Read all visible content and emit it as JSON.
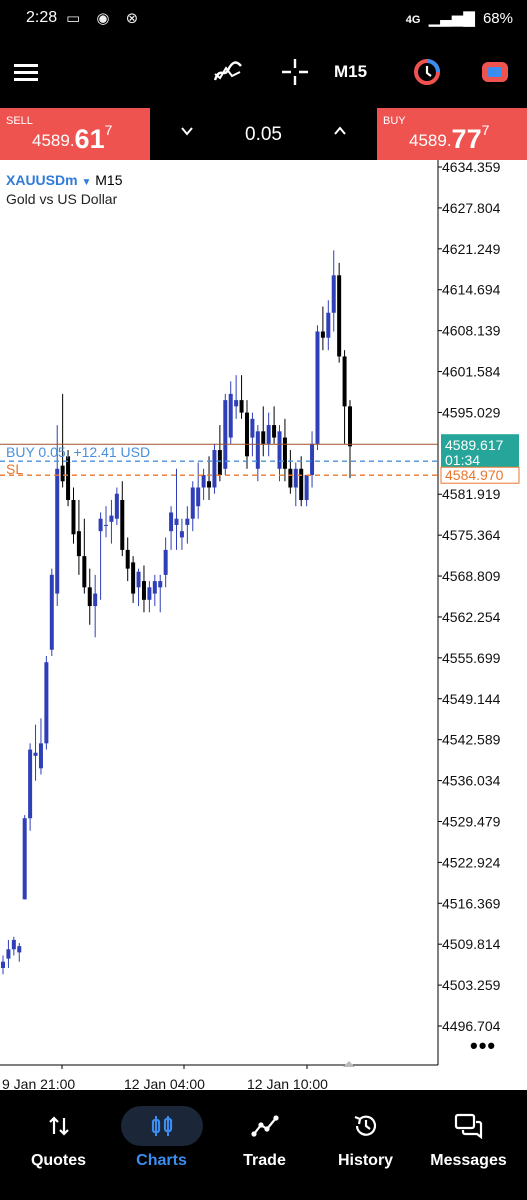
{
  "status_bar": {
    "time": "2:28",
    "network": "4G",
    "battery": "68%"
  },
  "toolbar": {
    "timeframe": "M15"
  },
  "trade_bar": {
    "sell": {
      "label": "SELL",
      "price_prefix": "4589.",
      "price_big": "61",
      "price_sup": "7"
    },
    "buy": {
      "label": "BUY",
      "price_prefix": "4589.",
      "price_big": "77",
      "price_sup": "7"
    },
    "lot": "0.05"
  },
  "chart": {
    "symbol": "XAUUSDm",
    "timeframe": "M15",
    "description": "Gold vs US Dollar",
    "current_price": "4589.617",
    "countdown": "01:34",
    "sl_price": "4584.970",
    "position_label": "BUY 0.05,  +12.41 USD",
    "sl_label": "SL"
  },
  "chart_data": {
    "type": "candlestick",
    "title": "XAUUSDm M15",
    "y_ticks": [
      "4634.359",
      "4627.804",
      "4621.249",
      "4614.694",
      "4608.139",
      "4601.584",
      "4595.029",
      "4581.919",
      "4575.364",
      "4568.809",
      "4562.254",
      "4555.699",
      "4549.144",
      "4542.589",
      "4536.034",
      "4529.479",
      "4522.924",
      "4516.369",
      "4509.814",
      "4503.259",
      "4496.704"
    ],
    "x_ticks": [
      "9 Jan 21:00",
      "12 Jan 04:00",
      "12 Jan 10:00"
    ],
    "ylim": [
      4492.0,
      4640.0
    ],
    "ohlc": [
      [
        4506.0,
        4508.0,
        4505.0,
        4507.0
      ],
      [
        4507.5,
        4510.5,
        4506.0,
        4509.0
      ],
      [
        4509.0,
        4511.0,
        4508.0,
        4510.5
      ],
      [
        4508.5,
        4510.0,
        4507.0,
        4509.5
      ],
      [
        4517.0,
        4530.5,
        4517.0,
        4530.0
      ],
      [
        4530.0,
        4542.0,
        4528.0,
        4541.0
      ],
      [
        4540.0,
        4545.0,
        4536.0,
        4540.5
      ],
      [
        4538.0,
        4546.0,
        4537.0,
        4542.0
      ],
      [
        4542.0,
        4556.0,
        4541.0,
        4555.0
      ],
      [
        4557.0,
        4570.0,
        4556.0,
        4569.0
      ],
      [
        4566.0,
        4593.0,
        4564.0,
        4586.0
      ],
      [
        4586.5,
        4598.0,
        4583.0,
        4584.0
      ],
      [
        4588.0,
        4589.0,
        4580.0,
        4581.0
      ],
      [
        4581.0,
        4583.0,
        4574.0,
        4575.5
      ],
      [
        4576.0,
        4581.0,
        4569.0,
        4572.0
      ],
      [
        4572.0,
        4578.0,
        4566.0,
        4567.0
      ],
      [
        4567.0,
        4570.0,
        4561.0,
        4564.0
      ],
      [
        4564.0,
        4569.0,
        4559.0,
        4566.0
      ],
      [
        4576.0,
        4579.0,
        4565.0,
        4578.0
      ],
      [
        4577.0,
        4580.0,
        4575.0,
        4577.0
      ],
      [
        4577.5,
        4581.0,
        4574.0,
        4578.5
      ],
      [
        4578.0,
        4583.0,
        4577.0,
        4582.0
      ],
      [
        4581.0,
        4584.0,
        4572.0,
        4573.0
      ],
      [
        4573.0,
        4575.0,
        4568.0,
        4570.0
      ],
      [
        4571.0,
        4572.0,
        4564.5,
        4566.0
      ],
      [
        4567.0,
        4570.0,
        4564.0,
        4569.5
      ],
      [
        4568.0,
        4570.5,
        4563.0,
        4565.0
      ],
      [
        4565.0,
        4568.0,
        4563.0,
        4567.0
      ],
      [
        4566.0,
        4569.0,
        4564.0,
        4568.0
      ],
      [
        4567.0,
        4569.0,
        4563.0,
        4568.0
      ],
      [
        4569.0,
        4575.0,
        4567.0,
        4573.0
      ],
      [
        4576.0,
        4580.0,
        4573.0,
        4579.0
      ],
      [
        4577.0,
        4586.0,
        4573.0,
        4578.0
      ],
      [
        4575.0,
        4578.0,
        4573.0,
        4576.0
      ],
      [
        4577.0,
        4580.0,
        4574.0,
        4578.0
      ],
      [
        4578.0,
        4584.0,
        4576.0,
        4583.0
      ],
      [
        4580.0,
        4587.0,
        4578.0,
        4583.0
      ],
      [
        4583.0,
        4586.0,
        4581.0,
        4585.0
      ],
      [
        4584.0,
        4588.0,
        4581.0,
        4583.0
      ],
      [
        4583.0,
        4590.0,
        4582.0,
        4589.0
      ],
      [
        4589.0,
        4593.0,
        4584.0,
        4585.0
      ],
      [
        4586.0,
        4598.0,
        4585.0,
        4597.0
      ],
      [
        4591.0,
        4600.0,
        4590.0,
        4598.0
      ],
      [
        4596.0,
        4601.0,
        4594.0,
        4597.0
      ],
      [
        4597.0,
        4601.0,
        4594.0,
        4595.0
      ],
      [
        4595.0,
        4597.0,
        4586.0,
        4588.0
      ],
      [
        4591.0,
        4595.0,
        4588.0,
        4594.0
      ],
      [
        4586.0,
        4593.0,
        4584.0,
        4592.0
      ],
      [
        4592.0,
        4596.0,
        4588.0,
        4590.0
      ],
      [
        4590.0,
        4595.0,
        4588.0,
        4593.0
      ],
      [
        4593.0,
        4596.0,
        4590.0,
        4591.0
      ],
      [
        4586.0,
        4593.0,
        4584.0,
        4592.0
      ],
      [
        4591.0,
        4594.0,
        4584.0,
        4586.0
      ],
      [
        4586.0,
        4589.0,
        4582.0,
        4583.0
      ],
      [
        4583.0,
        4587.0,
        4580.0,
        4586.0
      ],
      [
        4586.0,
        4588.0,
        4580.0,
        4581.0
      ],
      [
        4581.0,
        4585.0,
        4580.0,
        4585.0
      ],
      [
        4585.0,
        4592.0,
        4583.0,
        4590.0
      ],
      [
        4590.0,
        4609.0,
        4589.0,
        4608.0
      ],
      [
        4608.0,
        4612.0,
        4605.0,
        4607.0
      ],
      [
        4607.0,
        4613.0,
        4605.0,
        4611.0
      ],
      [
        4611.0,
        4621.0,
        4608.0,
        4617.0
      ],
      [
        4617.0,
        4619.0,
        4603.0,
        4604.0
      ],
      [
        4604.0,
        4605.0,
        4590.0,
        4596.0
      ],
      [
        4596.0,
        4597.0,
        4584.5,
        4589.6
      ]
    ]
  },
  "bottom_nav": {
    "items": [
      {
        "label": "Quotes",
        "icon": "quotes-icon"
      },
      {
        "label": "Charts",
        "icon": "charts-icon"
      },
      {
        "label": "Trade",
        "icon": "trade-icon"
      },
      {
        "label": "History",
        "icon": "history-icon"
      },
      {
        "label": "Messages",
        "icon": "messages-icon"
      }
    ],
    "active": "Charts"
  },
  "colors": {
    "bull": "#2e3fb8",
    "bear": "#000000",
    "sell_bg": "#ef5350",
    "price_tag": "#26a69a",
    "sl_line": "#e8772e",
    "position_line": "#4a90d9",
    "accent": "#3b8ef0"
  }
}
